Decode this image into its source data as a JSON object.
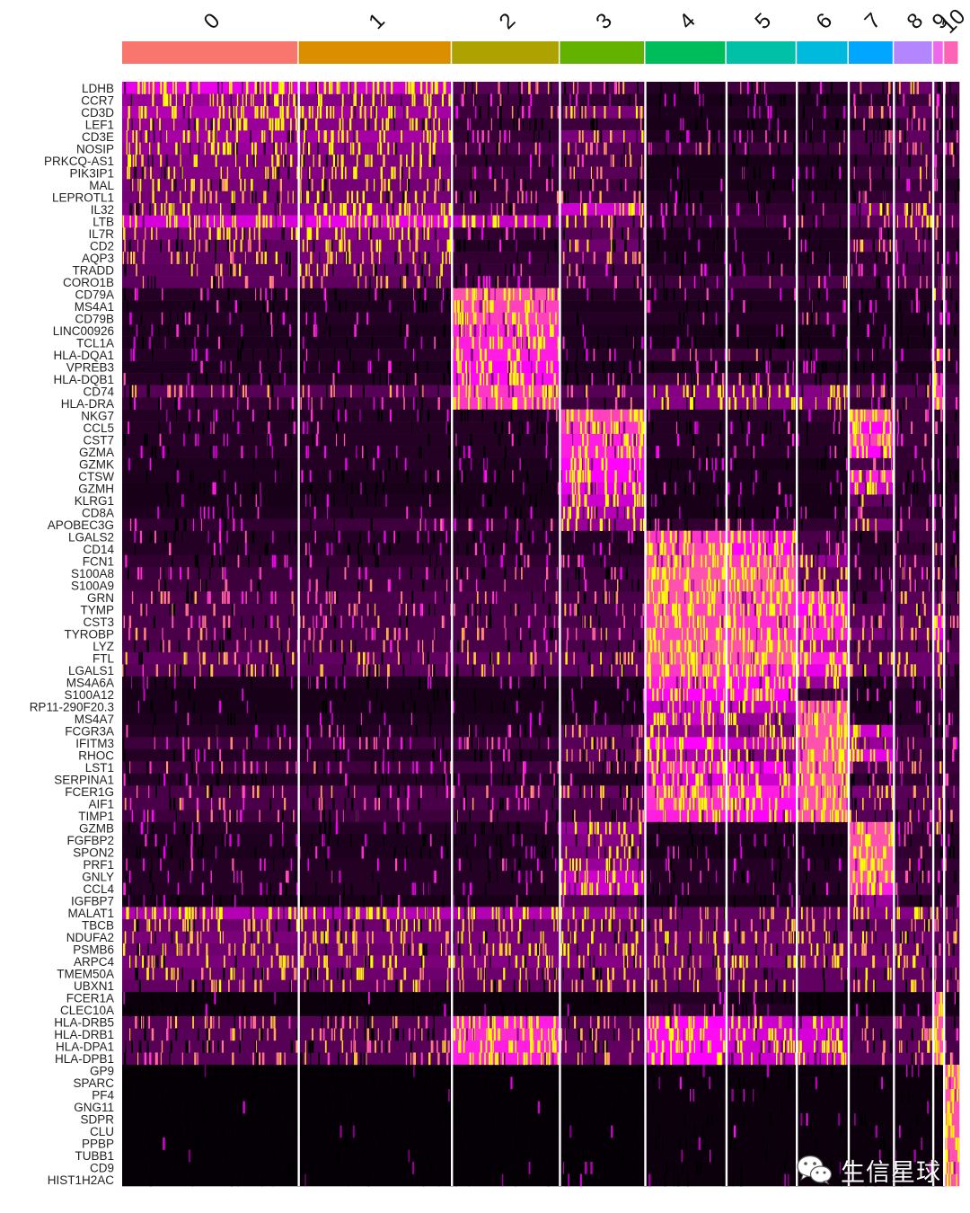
{
  "chart_data": {
    "type": "heatmap",
    "clusters": [
      "0",
      "1",
      "2",
      "3",
      "4",
      "5",
      "6",
      "7",
      "8",
      "9",
      "10"
    ],
    "cluster_cell_fraction": [
      0.211,
      0.183,
      0.129,
      0.102,
      0.097,
      0.084,
      0.062,
      0.054,
      0.047,
      0.013,
      0.018
    ],
    "cluster_colors": [
      "#F8766D",
      "#DB8E00",
      "#AEA200",
      "#64B200",
      "#00BD5C",
      "#00C1A7",
      "#00BADE",
      "#00A6FF",
      "#B385FF",
      "#EF67EB",
      "#FF63B6"
    ],
    "genes": [
      "LDHB",
      "CCR7",
      "CD3D",
      "LEF1",
      "CD3E",
      "NOSIP",
      "PRKCQ-AS1",
      "PIK3IP1",
      "MAL",
      "LEPROTL1",
      "IL32",
      "LTB",
      "IL7R",
      "CD2",
      "AQP3",
      "TRADD",
      "CORO1B",
      "CD79A",
      "MS4A1",
      "CD79B",
      "LINC00926",
      "TCL1A",
      "HLA-DQA1",
      "VPREB3",
      "HLA-DQB1",
      "CD74",
      "HLA-DRA",
      "NKG7",
      "CCL5",
      "CST7",
      "GZMA",
      "GZMK",
      "CTSW",
      "GZMH",
      "KLRG1",
      "CD8A",
      "APOBEC3G",
      "LGALS2",
      "CD14",
      "FCN1",
      "S100A8",
      "S100A9",
      "GRN",
      "TYMP",
      "CST3",
      "TYROBP",
      "LYZ",
      "FTL",
      "LGALS1",
      "MS4A6A",
      "S100A12",
      "RP11-290F20.3",
      "MS4A7",
      "FCGR3A",
      "IFITM3",
      "RHOC",
      "LST1",
      "SERPINA1",
      "FCER1G",
      "AIF1",
      "TIMP1",
      "GZMB",
      "FGFBP2",
      "SPON2",
      "PRF1",
      "GNLY",
      "CCL4",
      "IGFBP7",
      "MALAT1",
      "TBCB",
      "NDUFA2",
      "PSMB6",
      "ARPC4",
      "TMEM50A",
      "UBXN1",
      "FCER1A",
      "CLEC10A",
      "HLA-DRB5",
      "HLA-DRB1",
      "HLA-DPA1",
      "HLA-DPB1",
      "GP9",
      "SPARC",
      "PF4",
      "GNG11",
      "SDPR",
      "CLU",
      "PPBP",
      "TUBB1",
      "CD9",
      "HIST1H2AC"
    ],
    "expression_matrix": [
      [
        0.75,
        0.7,
        0.35,
        0.35,
        0.15,
        0.25,
        0.2,
        0.3,
        0.45,
        0.4,
        0.3
      ],
      [
        0.6,
        0.55,
        0.25,
        0.2,
        0.1,
        0.12,
        0.1,
        0.15,
        0.25,
        0.2,
        0.2
      ],
      [
        0.65,
        0.62,
        0.25,
        0.5,
        0.12,
        0.15,
        0.15,
        0.3,
        0.4,
        0.3,
        0.25
      ],
      [
        0.6,
        0.55,
        0.2,
        0.25,
        0.1,
        0.1,
        0.12,
        0.15,
        0.25,
        0.2,
        0.2
      ],
      [
        0.62,
        0.62,
        0.22,
        0.5,
        0.12,
        0.15,
        0.15,
        0.3,
        0.4,
        0.3,
        0.25
      ],
      [
        0.6,
        0.58,
        0.3,
        0.35,
        0.25,
        0.25,
        0.25,
        0.3,
        0.35,
        0.3,
        0.3
      ],
      [
        0.55,
        0.52,
        0.2,
        0.3,
        0.1,
        0.1,
        0.12,
        0.2,
        0.3,
        0.2,
        0.2
      ],
      [
        0.55,
        0.55,
        0.25,
        0.35,
        0.1,
        0.12,
        0.12,
        0.25,
        0.35,
        0.25,
        0.25
      ],
      [
        0.5,
        0.48,
        0.2,
        0.25,
        0.1,
        0.1,
        0.1,
        0.15,
        0.25,
        0.15,
        0.15
      ],
      [
        0.48,
        0.48,
        0.25,
        0.3,
        0.15,
        0.15,
        0.15,
        0.2,
        0.3,
        0.2,
        0.2
      ],
      [
        0.55,
        0.6,
        0.3,
        0.7,
        0.15,
        0.2,
        0.2,
        0.55,
        0.45,
        0.35,
        0.3
      ],
      [
        0.72,
        0.75,
        0.68,
        0.45,
        0.22,
        0.25,
        0.25,
        0.35,
        0.55,
        0.4,
        0.35
      ],
      [
        0.5,
        0.58,
        0.2,
        0.35,
        0.1,
        0.12,
        0.12,
        0.2,
        0.35,
        0.2,
        0.2
      ],
      [
        0.4,
        0.5,
        0.15,
        0.45,
        0.1,
        0.12,
        0.12,
        0.4,
        0.35,
        0.2,
        0.2
      ],
      [
        0.4,
        0.5,
        0.2,
        0.35,
        0.1,
        0.12,
        0.12,
        0.2,
        0.3,
        0.2,
        0.2
      ],
      [
        0.38,
        0.42,
        0.22,
        0.28,
        0.15,
        0.15,
        0.15,
        0.2,
        0.25,
        0.2,
        0.2
      ],
      [
        0.38,
        0.4,
        0.25,
        0.3,
        0.25,
        0.3,
        0.3,
        0.25,
        0.3,
        0.25,
        0.25
      ],
      [
        0.15,
        0.15,
        0.95,
        0.15,
        0.15,
        0.15,
        0.15,
        0.12,
        0.12,
        0.4,
        0.2
      ],
      [
        0.12,
        0.12,
        0.92,
        0.12,
        0.12,
        0.12,
        0.15,
        0.12,
        0.12,
        0.3,
        0.2
      ],
      [
        0.15,
        0.15,
        0.92,
        0.15,
        0.15,
        0.15,
        0.25,
        0.12,
        0.12,
        0.3,
        0.2
      ],
      [
        0.12,
        0.12,
        0.85,
        0.12,
        0.1,
        0.1,
        0.1,
        0.1,
        0.1,
        0.25,
        0.15
      ],
      [
        0.12,
        0.12,
        0.85,
        0.12,
        0.1,
        0.1,
        0.1,
        0.1,
        0.1,
        0.2,
        0.15
      ],
      [
        0.15,
        0.15,
        0.85,
        0.15,
        0.25,
        0.25,
        0.25,
        0.15,
        0.15,
        0.9,
        0.2
      ],
      [
        0.12,
        0.12,
        0.8,
        0.12,
        0.1,
        0.1,
        0.1,
        0.1,
        0.1,
        0.3,
        0.15
      ],
      [
        0.15,
        0.15,
        0.82,
        0.15,
        0.25,
        0.25,
        0.25,
        0.15,
        0.15,
        0.9,
        0.2
      ],
      [
        0.35,
        0.35,
        0.9,
        0.35,
        0.55,
        0.55,
        0.55,
        0.35,
        0.35,
        0.9,
        0.3
      ],
      [
        0.2,
        0.2,
        0.9,
        0.25,
        0.55,
        0.55,
        0.55,
        0.2,
        0.25,
        0.9,
        0.3
      ],
      [
        0.15,
        0.15,
        0.15,
        0.92,
        0.15,
        0.15,
        0.2,
        0.95,
        0.25,
        0.2,
        0.2
      ],
      [
        0.15,
        0.15,
        0.15,
        0.9,
        0.15,
        0.15,
        0.15,
        0.8,
        0.25,
        0.2,
        0.2
      ],
      [
        0.15,
        0.15,
        0.15,
        0.85,
        0.15,
        0.15,
        0.15,
        0.92,
        0.25,
        0.2,
        0.2
      ],
      [
        0.15,
        0.15,
        0.15,
        0.85,
        0.15,
        0.15,
        0.15,
        0.8,
        0.2,
        0.2,
        0.2
      ],
      [
        0.12,
        0.15,
        0.12,
        0.8,
        0.1,
        0.1,
        0.1,
        0.3,
        0.2,
        0.15,
        0.15
      ],
      [
        0.12,
        0.12,
        0.12,
        0.8,
        0.12,
        0.12,
        0.12,
        0.85,
        0.2,
        0.15,
        0.15
      ],
      [
        0.1,
        0.1,
        0.1,
        0.75,
        0.1,
        0.1,
        0.1,
        0.7,
        0.15,
        0.15,
        0.15
      ],
      [
        0.1,
        0.12,
        0.1,
        0.7,
        0.1,
        0.1,
        0.1,
        0.4,
        0.15,
        0.15,
        0.15
      ],
      [
        0.12,
        0.15,
        0.12,
        0.65,
        0.1,
        0.1,
        0.1,
        0.25,
        0.2,
        0.15,
        0.15
      ],
      [
        0.2,
        0.25,
        0.2,
        0.6,
        0.2,
        0.2,
        0.2,
        0.5,
        0.3,
        0.2,
        0.2
      ],
      [
        0.15,
        0.15,
        0.15,
        0.15,
        0.9,
        0.85,
        0.3,
        0.15,
        0.25,
        0.3,
        0.2
      ],
      [
        0.15,
        0.15,
        0.15,
        0.15,
        0.92,
        0.8,
        0.3,
        0.15,
        0.2,
        0.3,
        0.2
      ],
      [
        0.2,
        0.2,
        0.2,
        0.2,
        0.95,
        0.9,
        0.6,
        0.2,
        0.3,
        0.3,
        0.2
      ],
      [
        0.25,
        0.25,
        0.25,
        0.25,
        0.95,
        0.95,
        0.4,
        0.2,
        0.3,
        0.3,
        0.2
      ],
      [
        0.25,
        0.25,
        0.25,
        0.25,
        0.95,
        0.95,
        0.45,
        0.2,
        0.3,
        0.3,
        0.2
      ],
      [
        0.3,
        0.3,
        0.3,
        0.3,
        0.95,
        0.9,
        0.85,
        0.3,
        0.35,
        0.5,
        0.3
      ],
      [
        0.3,
        0.3,
        0.3,
        0.3,
        0.92,
        0.88,
        0.8,
        0.35,
        0.4,
        0.6,
        0.3
      ],
      [
        0.3,
        0.3,
        0.3,
        0.3,
        0.92,
        0.88,
        0.85,
        0.35,
        0.4,
        0.8,
        0.3
      ],
      [
        0.3,
        0.3,
        0.3,
        0.35,
        0.92,
        0.88,
        0.85,
        0.5,
        0.45,
        0.75,
        0.3
      ],
      [
        0.3,
        0.3,
        0.3,
        0.3,
        0.95,
        0.95,
        0.65,
        0.3,
        0.35,
        0.6,
        0.3
      ],
      [
        0.4,
        0.4,
        0.4,
        0.4,
        0.95,
        0.95,
        0.85,
        0.4,
        0.45,
        0.6,
        0.4
      ],
      [
        0.35,
        0.35,
        0.35,
        0.4,
        0.9,
        0.85,
        0.75,
        0.45,
        0.45,
        0.5,
        0.4
      ],
      [
        0.12,
        0.12,
        0.12,
        0.12,
        0.85,
        0.8,
        0.6,
        0.12,
        0.2,
        0.4,
        0.2
      ],
      [
        0.1,
        0.1,
        0.1,
        0.1,
        0.8,
        0.8,
        0.25,
        0.1,
        0.15,
        0.25,
        0.15
      ],
      [
        0.1,
        0.1,
        0.1,
        0.1,
        0.7,
        0.7,
        0.95,
        0.1,
        0.15,
        0.2,
        0.15
      ],
      [
        0.12,
        0.12,
        0.12,
        0.12,
        0.7,
        0.6,
        0.95,
        0.12,
        0.15,
        0.2,
        0.15
      ],
      [
        0.15,
        0.15,
        0.15,
        0.4,
        0.6,
        0.5,
        0.95,
        0.7,
        0.25,
        0.2,
        0.2
      ],
      [
        0.25,
        0.25,
        0.25,
        0.35,
        0.8,
        0.7,
        0.95,
        0.6,
        0.3,
        0.3,
        0.25
      ],
      [
        0.15,
        0.15,
        0.15,
        0.4,
        0.65,
        0.55,
        0.95,
        0.75,
        0.25,
        0.2,
        0.2
      ],
      [
        0.25,
        0.25,
        0.25,
        0.25,
        0.85,
        0.8,
        0.95,
        0.3,
        0.3,
        0.4,
        0.25
      ],
      [
        0.15,
        0.15,
        0.15,
        0.15,
        0.75,
        0.7,
        0.95,
        0.2,
        0.2,
        0.3,
        0.2
      ],
      [
        0.3,
        0.3,
        0.3,
        0.4,
        0.9,
        0.85,
        0.95,
        0.5,
        0.35,
        0.5,
        0.3
      ],
      [
        0.3,
        0.3,
        0.3,
        0.3,
        0.88,
        0.82,
        0.95,
        0.4,
        0.35,
        0.5,
        0.3
      ],
      [
        0.25,
        0.25,
        0.25,
        0.3,
        0.85,
        0.8,
        0.95,
        0.35,
        0.3,
        0.4,
        0.3
      ],
      [
        0.15,
        0.15,
        0.15,
        0.6,
        0.15,
        0.15,
        0.15,
        0.95,
        0.25,
        0.4,
        0.2
      ],
      [
        0.12,
        0.12,
        0.12,
        0.55,
        0.1,
        0.1,
        0.1,
        0.95,
        0.2,
        0.15,
        0.15
      ],
      [
        0.12,
        0.12,
        0.12,
        0.5,
        0.1,
        0.1,
        0.1,
        0.95,
        0.2,
        0.15,
        0.15
      ],
      [
        0.15,
        0.15,
        0.15,
        0.6,
        0.15,
        0.15,
        0.15,
        0.95,
        0.25,
        0.2,
        0.2
      ],
      [
        0.15,
        0.15,
        0.15,
        0.7,
        0.15,
        0.15,
        0.15,
        0.95,
        0.3,
        0.2,
        0.2
      ],
      [
        0.15,
        0.15,
        0.15,
        0.7,
        0.15,
        0.15,
        0.15,
        0.85,
        0.3,
        0.2,
        0.2
      ],
      [
        0.1,
        0.1,
        0.1,
        0.35,
        0.1,
        0.1,
        0.1,
        0.6,
        0.15,
        0.15,
        0.15
      ],
      [
        0.65,
        0.65,
        0.65,
        0.6,
        0.4,
        0.4,
        0.4,
        0.55,
        0.55,
        0.4,
        0.4
      ],
      [
        0.45,
        0.45,
        0.45,
        0.45,
        0.4,
        0.4,
        0.4,
        0.4,
        0.4,
        0.35,
        0.35
      ],
      [
        0.5,
        0.5,
        0.5,
        0.5,
        0.45,
        0.45,
        0.45,
        0.45,
        0.45,
        0.4,
        0.4
      ],
      [
        0.45,
        0.45,
        0.5,
        0.5,
        0.45,
        0.45,
        0.45,
        0.45,
        0.45,
        0.4,
        0.4
      ],
      [
        0.5,
        0.5,
        0.55,
        0.55,
        0.5,
        0.5,
        0.5,
        0.5,
        0.5,
        0.45,
        0.45
      ],
      [
        0.45,
        0.45,
        0.45,
        0.45,
        0.4,
        0.4,
        0.4,
        0.4,
        0.4,
        0.35,
        0.35
      ],
      [
        0.4,
        0.4,
        0.4,
        0.4,
        0.4,
        0.4,
        0.4,
        0.4,
        0.4,
        0.35,
        0.35
      ],
      [
        0.05,
        0.05,
        0.05,
        0.05,
        0.15,
        0.1,
        0.05,
        0.05,
        0.1,
        0.95,
        0.1
      ],
      [
        0.05,
        0.05,
        0.05,
        0.05,
        0.2,
        0.15,
        0.05,
        0.05,
        0.1,
        0.95,
        0.1
      ],
      [
        0.35,
        0.35,
        0.85,
        0.35,
        0.8,
        0.7,
        0.7,
        0.3,
        0.35,
        0.95,
        0.3
      ],
      [
        0.35,
        0.35,
        0.88,
        0.35,
        0.82,
        0.72,
        0.72,
        0.3,
        0.35,
        0.95,
        0.3
      ],
      [
        0.35,
        0.35,
        0.85,
        0.4,
        0.8,
        0.7,
        0.7,
        0.35,
        0.4,
        0.95,
        0.3
      ],
      [
        0.35,
        0.35,
        0.85,
        0.4,
        0.8,
        0.7,
        0.7,
        0.35,
        0.4,
        0.95,
        0.3
      ],
      [
        0.02,
        0.02,
        0.02,
        0.02,
        0.05,
        0.05,
        0.05,
        0.05,
        0.05,
        0.05,
        0.95
      ],
      [
        0.02,
        0.02,
        0.02,
        0.02,
        0.05,
        0.05,
        0.05,
        0.05,
        0.05,
        0.05,
        0.95
      ],
      [
        0.02,
        0.02,
        0.02,
        0.02,
        0.05,
        0.05,
        0.05,
        0.05,
        0.05,
        0.05,
        0.95
      ],
      [
        0.02,
        0.02,
        0.02,
        0.02,
        0.05,
        0.05,
        0.05,
        0.05,
        0.05,
        0.05,
        0.95
      ],
      [
        0.02,
        0.02,
        0.02,
        0.02,
        0.05,
        0.05,
        0.05,
        0.05,
        0.05,
        0.05,
        0.95
      ],
      [
        0.02,
        0.02,
        0.02,
        0.02,
        0.05,
        0.05,
        0.05,
        0.05,
        0.05,
        0.05,
        0.95
      ],
      [
        0.02,
        0.02,
        0.02,
        0.02,
        0.05,
        0.05,
        0.05,
        0.05,
        0.05,
        0.05,
        0.95
      ],
      [
        0.02,
        0.02,
        0.02,
        0.02,
        0.05,
        0.05,
        0.05,
        0.05,
        0.05,
        0.05,
        0.95
      ],
      [
        0.02,
        0.02,
        0.02,
        0.02,
        0.05,
        0.05,
        0.05,
        0.05,
        0.05,
        0.05,
        0.95
      ],
      [
        0.02,
        0.02,
        0.02,
        0.02,
        0.05,
        0.05,
        0.05,
        0.05,
        0.05,
        0.05,
        0.95
      ]
    ],
    "color_scale": [
      "#000000",
      "#8D008D",
      "#FF00FF",
      "#FFFF00"
    ],
    "legend": "none"
  },
  "watermark": {
    "text": "生信星球",
    "icon": "wechat-icon"
  }
}
